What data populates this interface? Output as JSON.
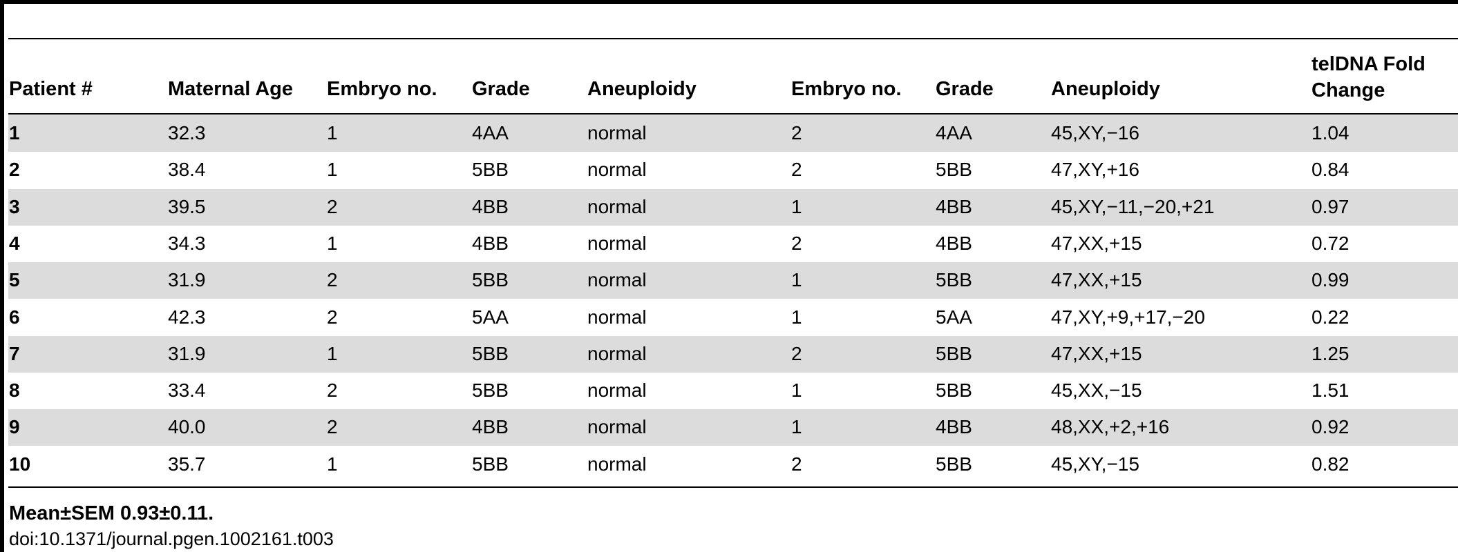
{
  "headers": [
    "Patient #",
    "Maternal Age",
    "Embryo no.",
    "Grade",
    "Aneuploidy",
    "Embryo no.",
    "Grade",
    "Aneuploidy",
    "telDNA Fold Change"
  ],
  "rows": [
    [
      "1",
      "32.3",
      "1",
      "4AA",
      "normal",
      "2",
      "4AA",
      "45,XY,−16",
      "1.04"
    ],
    [
      "2",
      "38.4",
      "1",
      "5BB",
      "normal",
      "2",
      "5BB",
      "47,XY,+16",
      "0.84"
    ],
    [
      "3",
      "39.5",
      "2",
      "4BB",
      "normal",
      "1",
      "4BB",
      "45,XY,−11,−20,+21",
      "0.97"
    ],
    [
      "4",
      "34.3",
      "1",
      "4BB",
      "normal",
      "2",
      "4BB",
      "47,XX,+15",
      "0.72"
    ],
    [
      "5",
      "31.9",
      "2",
      "5BB",
      "normal",
      "1",
      "5BB",
      "47,XX,+15",
      "0.99"
    ],
    [
      "6",
      "42.3",
      "2",
      "5AA",
      "normal",
      "1",
      "5AA",
      "47,XY,+9,+17,−20",
      "0.22"
    ],
    [
      "7",
      "31.9",
      "1",
      "5BB",
      "normal",
      "2",
      "5BB",
      "47,XX,+15",
      "1.25"
    ],
    [
      "8",
      "33.4",
      "2",
      "5BB",
      "normal",
      "1",
      "5BB",
      "45,XX,−15",
      "1.51"
    ],
    [
      "9",
      "40.0",
      "2",
      "4BB",
      "normal",
      "1",
      "4BB",
      "48,XX,+2,+16",
      "0.92"
    ],
    [
      "10",
      "35.7",
      "1",
      "5BB",
      "normal",
      "2",
      "5BB",
      "45,XY,−15",
      "0.82"
    ]
  ],
  "footer": {
    "mean": "Mean±SEM 0.93±0.11.",
    "doi": "doi:10.1371/journal.pgen.1002161.t003"
  }
}
